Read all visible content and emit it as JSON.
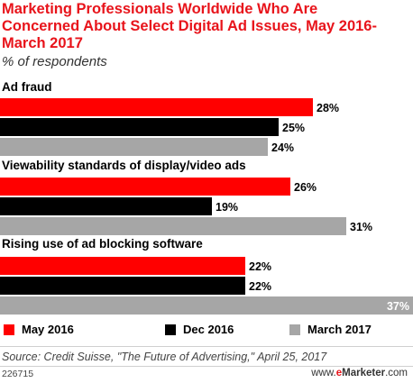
{
  "chart_data": {
    "type": "bar",
    "orientation": "horizontal",
    "title": "Marketing Professionals Worldwide Who Are Concerned About Select Digital Ad Issues, May 2016-March 2017",
    "subtitle": "% of respondents",
    "categories": [
      "Ad fraud",
      "Viewability standards of display/video ads",
      "Rising use of ad blocking software"
    ],
    "series": [
      {
        "name": "May 2016",
        "color": "#ff0000",
        "values": [
          28,
          26,
          22
        ]
      },
      {
        "name": "Dec 2016",
        "color": "#000000",
        "values": [
          25,
          19,
          22
        ]
      },
      {
        "name": "March 2017",
        "color": "#a6a6a6",
        "values": [
          24,
          31,
          37
        ]
      }
    ],
    "value_suffix": "%",
    "xlim": [
      0,
      37
    ],
    "grid": false,
    "legend_position": "bottom"
  },
  "footer": {
    "source": "Source: Credit Suisse, \"The Future of Advertising,\" April 25, 2017",
    "chart_id": "226715",
    "brand_prefix": "www.",
    "brand_e": "e",
    "brand_name": "Marketer",
    "brand_suffix": ".com"
  }
}
